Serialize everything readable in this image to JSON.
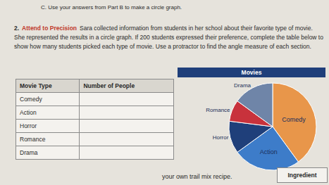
{
  "instruction": "C. Use your answers from Part B to make a circle graph.",
  "problem": {
    "number": "2.",
    "label": "Attend to Precision",
    "text": "Sara collected information from students in her school about their favorite type of movie. She represented the results in a circle graph. If 200 students expressed their preference, complete the table below to show how many students picked each type of movie. Use a protractor to find the angle measure of each section."
  },
  "table": {
    "header": [
      "Movie Type",
      "Number of People"
    ],
    "rows": [
      "Comedy",
      "Action",
      "Horror",
      "Romance",
      "Drama"
    ]
  },
  "chart_data": {
    "type": "pie",
    "title": "Movies",
    "categories": [
      "Comedy",
      "Action",
      "Horror",
      "Romance",
      "Drama"
    ],
    "values": [
      40,
      25,
      12,
      8,
      15
    ],
    "colors": [
      "#e8964a",
      "#3d7cc9",
      "#1f3f7a",
      "#c8323c",
      "#6f85a8"
    ]
  },
  "footer": {
    "text": "your own trail mix recipe.",
    "box": "Ingredient"
  }
}
